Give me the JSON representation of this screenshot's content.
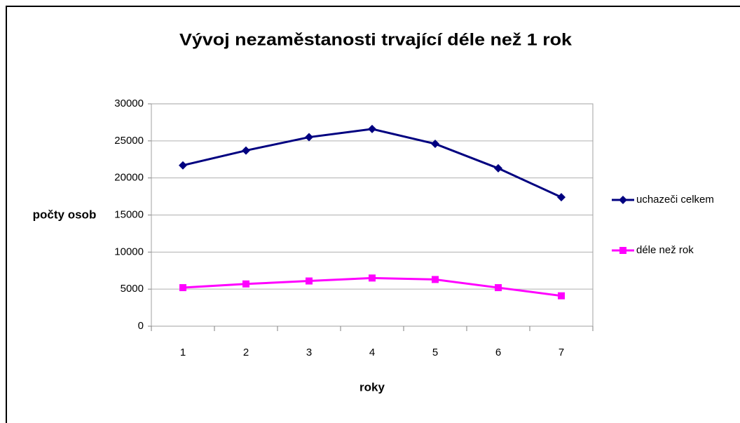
{
  "chart_data": {
    "type": "line",
    "title": "Vývoj nezaměstanosti trvající déle než 1 rok",
    "x_label": "roky",
    "y_label": "počty osob",
    "categories": [
      "1",
      "2",
      "3",
      "4",
      "5",
      "6",
      "7"
    ],
    "series": [
      {
        "name": "uchazeči celkem",
        "color": "#000080",
        "marker": "diamond",
        "values": [
          21700,
          23700,
          25500,
          26600,
          24600,
          21300,
          17400
        ]
      },
      {
        "name": "déle než rok",
        "color": "#ff00ff",
        "marker": "square",
        "values": [
          5200,
          5700,
          6100,
          6500,
          6300,
          5200,
          4100
        ]
      }
    ],
    "ylim": [
      0,
      30000
    ],
    "yticks": [
      0,
      5000,
      10000,
      15000,
      20000,
      25000,
      30000
    ],
    "grid": true,
    "legend": "right"
  }
}
